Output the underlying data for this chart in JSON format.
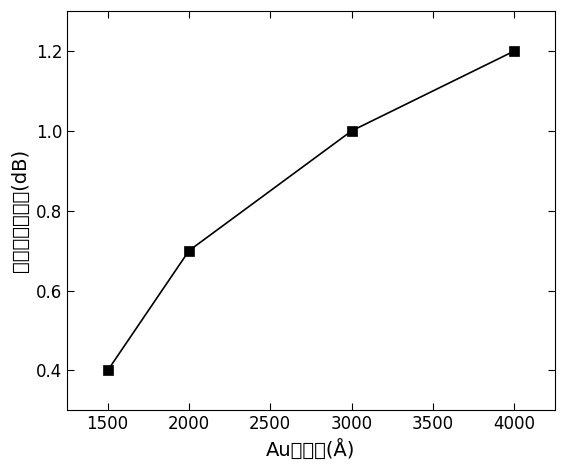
{
  "x": [
    1500,
    2000,
    3000,
    4000
  ],
  "y": [
    0.4,
    0.7,
    1.0,
    1.2
  ],
  "xlabel": "Au层厚度(Å)",
  "ylabel": "偏振消光比变化(dB)",
  "xlim": [
    1250,
    4250
  ],
  "ylim": [
    0.3,
    1.3
  ],
  "xticks": [
    1500,
    2000,
    2500,
    3000,
    3500,
    4000
  ],
  "yticks": [
    0.4,
    0.6,
    0.8,
    1.0,
    1.2
  ],
  "line_color": "#000000",
  "marker": "s",
  "marker_color": "#000000",
  "marker_size": 7,
  "line_width": 1.2,
  "background_color": "#ffffff",
  "tick_fontsize": 12,
  "label_fontsize": 14
}
